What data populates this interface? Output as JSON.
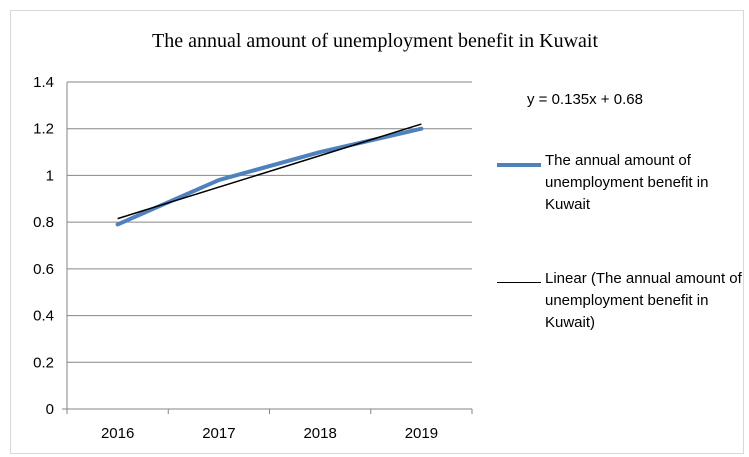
{
  "chart_data": {
    "type": "line",
    "title": "The annual amount of unemployment benefit in Kuwait",
    "categories": [
      "2016",
      "2017",
      "2018",
      "2019"
    ],
    "series": [
      {
        "name": "The annual amount of unemployment benefit in Kuwait",
        "values": [
          0.79,
          0.98,
          1.1,
          1.2
        ],
        "color": "#4f81bd"
      }
    ],
    "trendline": {
      "name": "Linear (The annual amount of unemployment benefit in Kuwait)",
      "type": "linear",
      "equation": "y = 0.135x + 0.68",
      "slope": 0.135,
      "intercept": 0.68,
      "color": "#000000"
    },
    "ylim": [
      0,
      1.4
    ],
    "y_ticks": [
      "0",
      "0.2",
      "0.4",
      "0.6",
      "0.8",
      "1",
      "1.2",
      "1.4"
    ],
    "grid": "horizontal",
    "legend_position": "right",
    "xlabel": "",
    "ylabel": ""
  }
}
